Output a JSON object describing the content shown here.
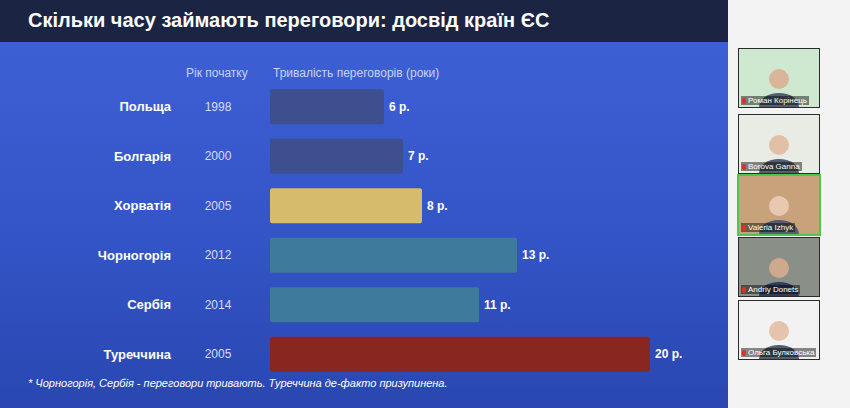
{
  "chart_data": {
    "type": "bar",
    "title": "Скільки часу займають переговори: досвід країн ЄС",
    "orientation": "horizontal",
    "categories": [
      "Польща",
      "Болгарія",
      "Хорватія",
      "Чорногорія",
      "Сербія",
      "Туреччина"
    ],
    "values": [
      6,
      7,
      8,
      13,
      11,
      20
    ],
    "value_labels": [
      "6 р.",
      "7 р.",
      "8 р.",
      "13 р.",
      "11 р.",
      "20 р."
    ],
    "colors": [
      "#3e4f90",
      "#3e4f90",
      "#d6bb6c",
      "#3e7a9c",
      "#3e7a9c",
      "#88271f"
    ],
    "start_year_label": "Рік початку",
    "start_years": [
      1998,
      2000,
      2005,
      2012,
      2014,
      2005
    ],
    "xlabel": "Тривалість переговорів (роки)",
    "note": "* Чорногорія, Сербія -  переговори тривають. Туреччина де-факто призупинена.",
    "xlim": [
      0,
      20
    ],
    "xticks": [],
    "grid": false,
    "data_labels": true,
    "tick_labels": "y"
  },
  "participants": [
    "Роман Корінець",
    "Borova Ganna",
    "Valeria Izhyk",
    "Andriy Donets",
    "Ольга Булковська"
  ]
}
